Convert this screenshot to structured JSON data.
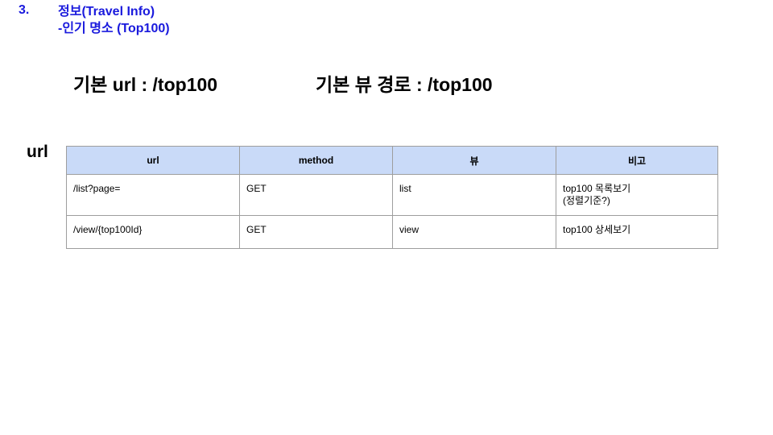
{
  "header": {
    "number": "3.",
    "title_line1": "정보(Travel Info)",
    "title_line2": "-인기 명소 (Top100)"
  },
  "base": {
    "url": "기본 url : /top100",
    "view_path": "기본 뷰 경로 : /top100"
  },
  "section_label": "url",
  "table": {
    "headers": [
      "url",
      "method",
      "뷰",
      "비고"
    ],
    "rows": [
      {
        "url": "/list?page=",
        "method": "GET",
        "view": "list",
        "note_line1": "top100 목록보기",
        "note_line2": "(정렬기준?)"
      },
      {
        "url": "/view/{top100Id}",
        "method": "GET",
        "view": "view",
        "note_line1": "top100 상세보기",
        "note_line2": ""
      }
    ]
  },
  "colors": {
    "header_text": "#1a1add",
    "table_header_bg": "#c9daf8",
    "table_border": "#9e9e9e"
  }
}
